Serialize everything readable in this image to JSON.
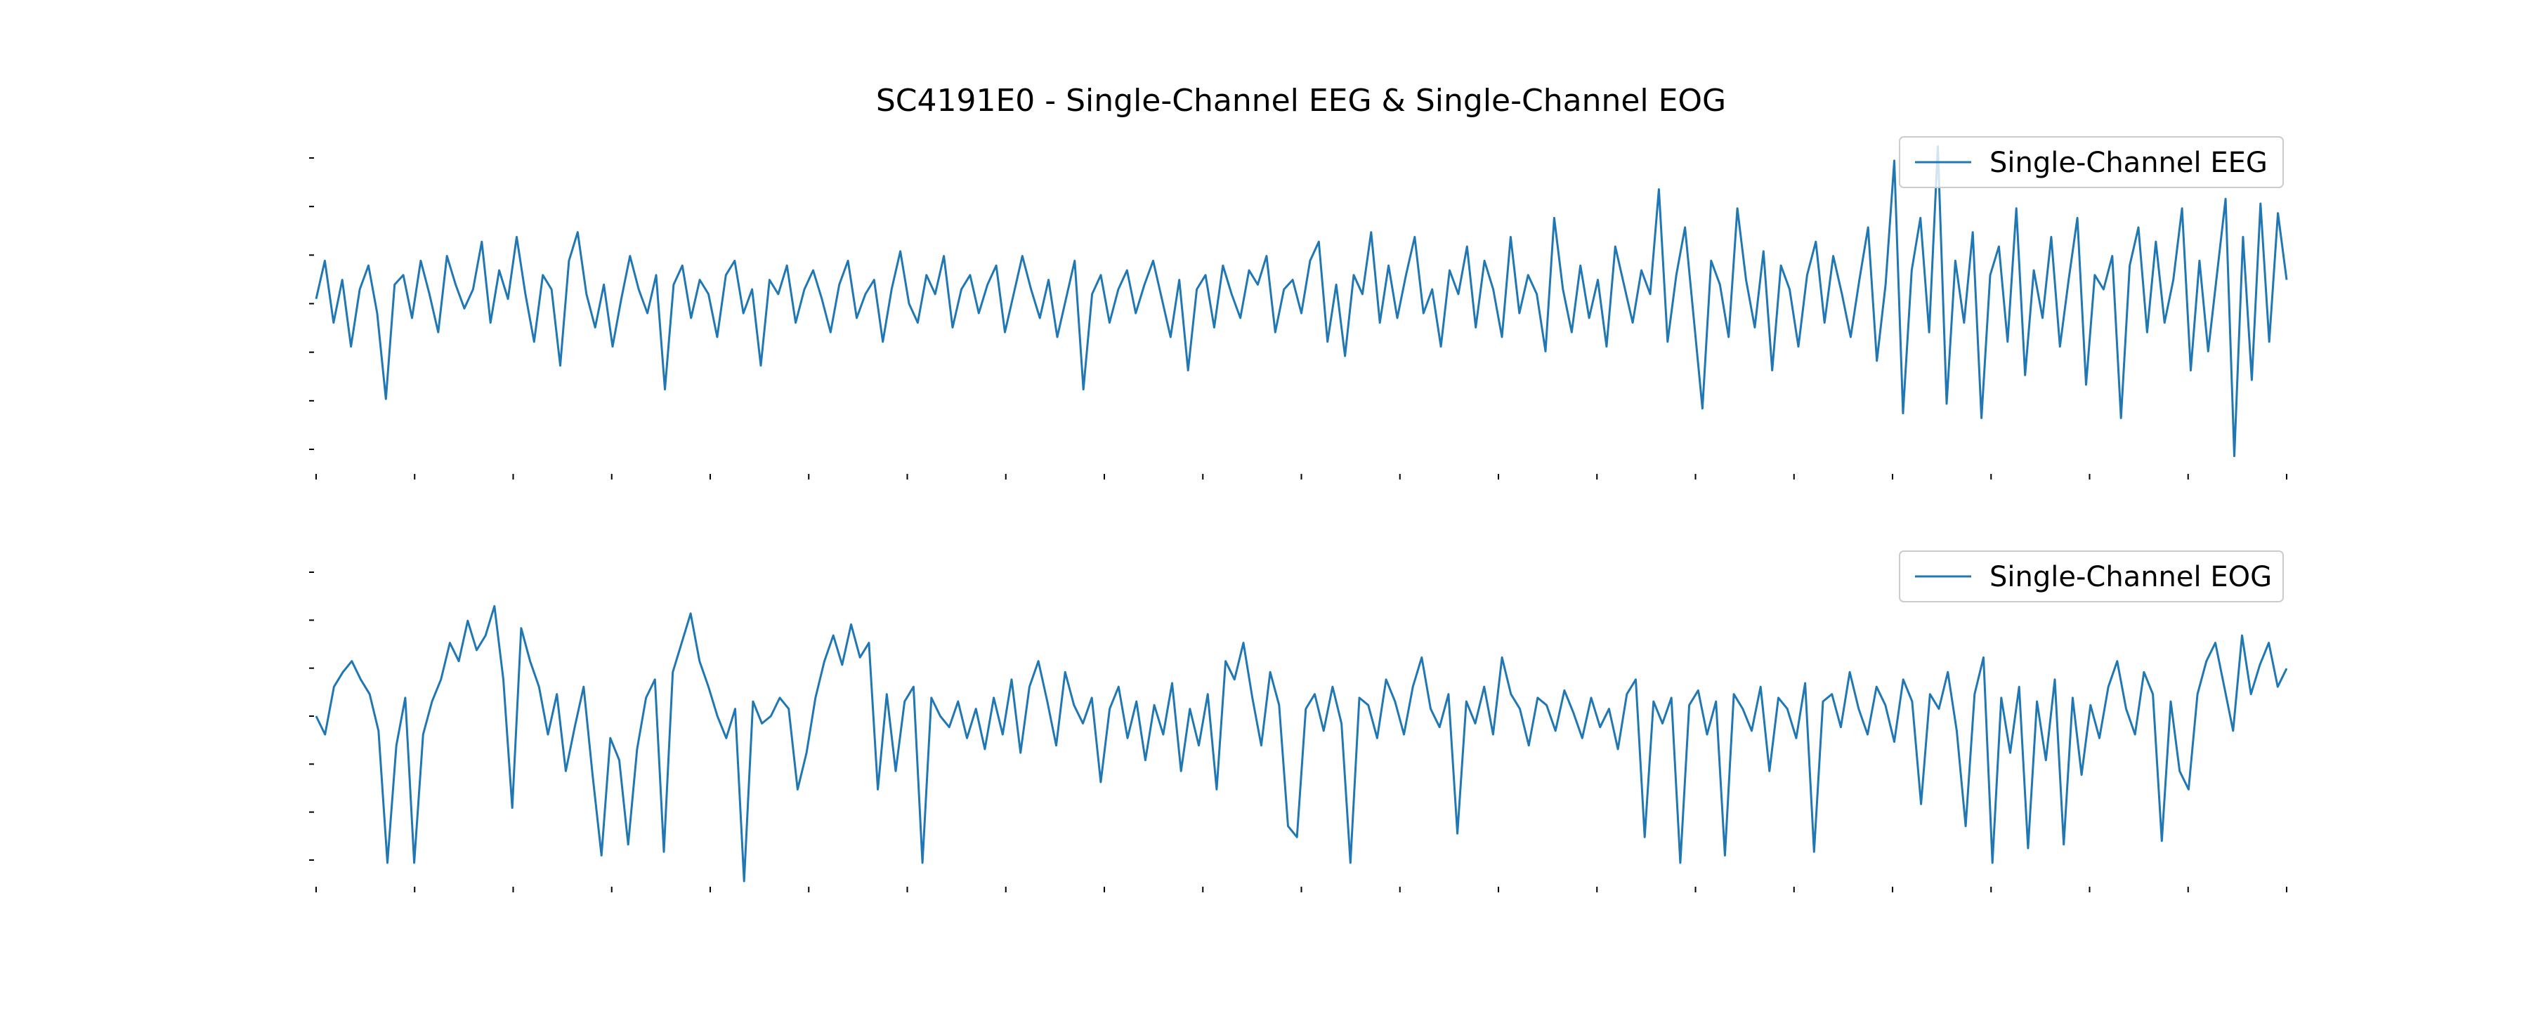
{
  "title": "SC4191E0 - Single-Channel EEG & Single-Channel EOG",
  "line_color": "#1f77b4",
  "chart_data": [
    {
      "type": "line",
      "xlabel": "",
      "ylabel": "",
      "legend_position": "top-right",
      "grid": false,
      "x_tick_count": 21,
      "y_tick_count": 7,
      "y_range": [
        -3.5,
        3.5
      ],
      "series": [
        {
          "name": "Single-Channel EEG",
          "color": "#1f77b4",
          "values": [
            0.1,
            0.9,
            -0.4,
            0.5,
            -0.9,
            0.3,
            0.8,
            -0.2,
            -2.0,
            0.4,
            0.6,
            -0.3,
            0.9,
            0.2,
            -0.6,
            1.0,
            0.4,
            -0.1,
            0.3,
            1.3,
            -0.4,
            0.7,
            0.1,
            1.4,
            0.2,
            -0.8,
            0.6,
            0.3,
            -1.3,
            0.9,
            1.5,
            0.2,
            -0.5,
            0.4,
            -0.9,
            0.1,
            1.0,
            0.3,
            -0.2,
            0.6,
            -1.8,
            0.4,
            0.8,
            -0.3,
            0.5,
            0.2,
            -0.7,
            0.6,
            0.9,
            -0.2,
            0.3,
            -1.3,
            0.5,
            0.2,
            0.8,
            -0.4,
            0.3,
            0.7,
            0.1,
            -0.6,
            0.4,
            0.9,
            -0.3,
            0.2,
            0.5,
            -0.8,
            0.3,
            1.1,
            0.0,
            -0.4,
            0.6,
            0.2,
            1.0,
            -0.5,
            0.3,
            0.6,
            -0.2,
            0.4,
            0.8,
            -0.6,
            0.2,
            1.0,
            0.3,
            -0.3,
            0.5,
            -0.7,
            0.1,
            0.9,
            -1.8,
            0.2,
            0.6,
            -0.4,
            0.3,
            0.7,
            -0.2,
            0.4,
            0.9,
            0.1,
            -0.7,
            0.5,
            -1.4,
            0.3,
            0.6,
            -0.5,
            0.8,
            0.2,
            -0.3,
            0.7,
            0.4,
            1.0,
            -0.6,
            0.3,
            0.5,
            -0.2,
            0.9,
            1.3,
            -0.8,
            0.4,
            -1.1,
            0.6,
            0.2,
            1.5,
            -0.4,
            0.8,
            -0.3,
            0.6,
            1.4,
            -0.2,
            0.3,
            -0.9,
            0.7,
            0.2,
            1.2,
            -0.5,
            0.9,
            0.3,
            -0.7,
            1.4,
            -0.2,
            0.6,
            0.2,
            -1.0,
            1.8,
            0.3,
            -0.6,
            0.8,
            -0.3,
            0.5,
            -0.9,
            1.2,
            0.4,
            -0.4,
            0.7,
            0.2,
            2.4,
            -0.8,
            0.6,
            1.6,
            -0.3,
            -2.2,
            0.9,
            0.4,
            -0.7,
            2.0,
            0.5,
            -0.5,
            1.1,
            -1.4,
            0.8,
            0.3,
            -0.9,
            0.6,
            1.3,
            -0.4,
            1.0,
            0.2,
            -0.7,
            0.5,
            1.6,
            -1.2,
            0.4,
            3.0,
            -2.3,
            0.7,
            1.8,
            -0.6,
            3.3,
            -2.1,
            0.9,
            -0.4,
            1.5,
            -2.4,
            0.6,
            1.2,
            -0.8,
            2.0,
            -1.5,
            0.7,
            -0.3,
            1.4,
            -0.9,
            0.5,
            1.8,
            -1.7,
            0.6,
            0.3,
            1.0,
            -2.4,
            0.8,
            1.6,
            -0.6,
            1.3,
            -0.4,
            0.5,
            2.0,
            -1.4,
            0.9,
            -1.0,
            0.6,
            2.2,
            -3.2,
            1.4,
            -1.6,
            2.1,
            -0.8,
            1.9,
            0.5
          ]
        }
      ]
    },
    {
      "type": "line",
      "xlabel": "",
      "ylabel": "",
      "legend_position": "top-right",
      "grid": false,
      "x_tick_count": 21,
      "y_tick_count": 7,
      "y_range": [
        -4.5,
        4.5
      ],
      "series": [
        {
          "name": "Single-Channel EOG",
          "color": "#1f77b4",
          "values": [
            0.0,
            -0.5,
            0.8,
            1.2,
            1.5,
            1.0,
            0.6,
            -0.4,
            -4.0,
            -0.8,
            0.5,
            -4.0,
            -0.5,
            0.4,
            1.0,
            2.0,
            1.5,
            2.6,
            1.8,
            2.2,
            3.0,
            1.0,
            -2.5,
            2.4,
            1.5,
            0.8,
            -0.5,
            0.6,
            -1.5,
            -0.3,
            0.8,
            -1.6,
            -3.8,
            -0.6,
            -1.2,
            -3.5,
            -0.9,
            0.5,
            1.0,
            -3.7,
            1.2,
            2.0,
            2.8,
            1.5,
            0.8,
            0.0,
            -0.6,
            0.2,
            -4.5,
            0.4,
            -0.2,
            0.0,
            0.5,
            0.2,
            -2.0,
            -1.0,
            0.5,
            1.5,
            2.2,
            1.4,
            2.5,
            1.6,
            2.0,
            -2.0,
            0.6,
            -1.5,
            0.4,
            0.8,
            -4.0,
            0.5,
            0.0,
            -0.3,
            0.4,
            -0.6,
            0.2,
            -0.9,
            0.5,
            -0.5,
            1.0,
            -1.0,
            0.8,
            1.5,
            0.4,
            -0.8,
            1.2,
            0.3,
            -0.2,
            0.5,
            -1.8,
            0.2,
            0.8,
            -0.6,
            0.4,
            -1.2,
            0.3,
            -0.5,
            0.9,
            -1.5,
            0.2,
            -0.8,
            0.6,
            -2.0,
            1.5,
            1.0,
            2.0,
            0.5,
            -0.8,
            1.2,
            0.3,
            -3.0,
            -3.3,
            0.2,
            0.6,
            -0.4,
            0.8,
            -0.2,
            -4.0,
            0.5,
            0.3,
            -0.6,
            1.0,
            0.4,
            -0.5,
            0.8,
            1.6,
            0.2,
            -0.3,
            0.6,
            -3.2,
            0.4,
            -0.2,
            0.8,
            -0.5,
            1.6,
            0.6,
            0.2,
            -0.8,
            0.5,
            0.3,
            -0.4,
            0.7,
            0.1,
            -0.6,
            0.5,
            -0.3,
            0.2,
            -0.9,
            0.6,
            1.0,
            -3.3,
            0.4,
            -0.2,
            0.5,
            -4.0,
            0.3,
            0.7,
            -0.5,
            0.4,
            -3.8,
            0.6,
            0.2,
            -0.4,
            0.8,
            -1.5,
            0.5,
            0.2,
            -0.6,
            0.9,
            -3.7,
            0.4,
            0.6,
            -0.3,
            1.2,
            0.2,
            -0.5,
            0.8,
            0.3,
            -0.7,
            1.0,
            0.4,
            -2.4,
            0.6,
            0.2,
            1.2,
            -0.4,
            -3.0,
            0.6,
            1.6,
            -4.0,
            0.5,
            -1.0,
            0.8,
            -3.6,
            0.4,
            -1.2,
            1.0,
            -3.5,
            0.5,
            -1.6,
            0.3,
            -0.6,
            0.8,
            1.5,
            0.2,
            -0.5,
            1.2,
            0.6,
            -3.4,
            0.4,
            -1.5,
            -2.0,
            0.6,
            1.5,
            2.0,
            0.8,
            -0.4,
            2.2,
            0.6,
            1.4,
            2.0,
            0.8,
            1.3
          ]
        }
      ]
    }
  ]
}
